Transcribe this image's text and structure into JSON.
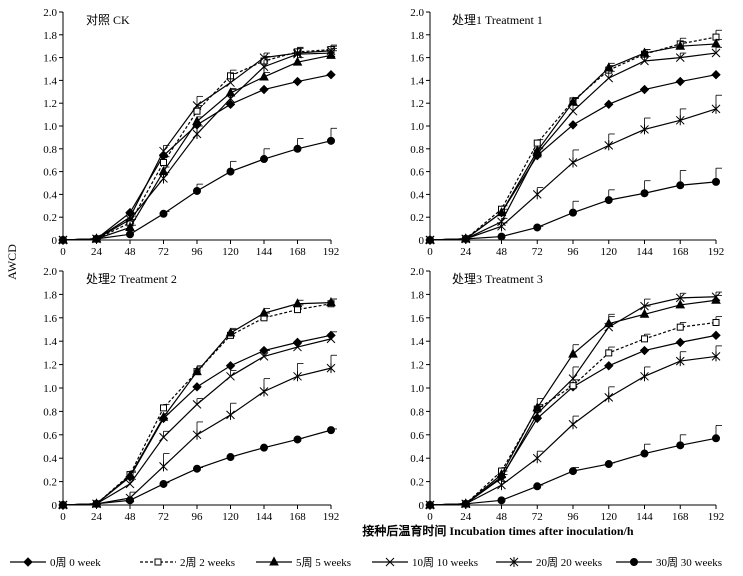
{
  "chart_data": {
    "type": "line",
    "ylabel": "AWCD",
    "xlabel": "接种后温育时间  Incubation times after inoculation/h",
    "x": [
      0,
      24,
      48,
      72,
      96,
      120,
      144,
      168,
      192
    ],
    "xticks": [
      "0",
      "24",
      "48",
      "72",
      "96",
      "120",
      "144",
      "168",
      "192"
    ],
    "yticks": [
      "0",
      "0.2",
      "0.4",
      "0.6",
      "0.8",
      "1.0",
      "1.2",
      "1.4",
      "1.6",
      "1.8",
      "2.0"
    ],
    "ylim": [
      0,
      2.0
    ],
    "legend": [
      {
        "key": "w0",
        "label": "0周  0 week"
      },
      {
        "key": "w2",
        "label": "2周  2 weeks"
      },
      {
        "key": "w5",
        "label": "5周  5 weeks"
      },
      {
        "key": "w10",
        "label": "10周 10 weeks"
      },
      {
        "key": "w20",
        "label": "20周 20 weeks"
      },
      {
        "key": "w30",
        "label": "30周 30 weeks"
      }
    ],
    "panels": [
      {
        "title": "对照 CK",
        "series": [
          {
            "key": "w0",
            "values": [
              0,
              0.01,
              0.24,
              0.74,
              1.01,
              1.19,
              1.32,
              1.39,
              1.45
            ],
            "err": [
              0,
              0,
              0,
              0,
              0,
              0,
              0,
              0,
              0
            ]
          },
          {
            "key": "w2",
            "values": [
              0,
              0.01,
              0.15,
              0.68,
              1.13,
              1.44,
              1.57,
              1.65,
              1.67
            ],
            "err": [
              0,
              0,
              0.03,
              0.05,
              0.05,
              0.05,
              0.04,
              0.04,
              0.03
            ]
          },
          {
            "key": "w5",
            "values": [
              0,
              0.01,
              0.11,
              0.6,
              1.04,
              1.29,
              1.43,
              1.56,
              1.62
            ],
            "err": [
              0,
              0,
              0.02,
              0.04,
              0.04,
              0.04,
              0.04,
              0.04,
              0.04
            ]
          },
          {
            "key": "w10",
            "values": [
              0,
              0.01,
              0.2,
              0.78,
              1.18,
              1.38,
              1.6,
              1.64,
              1.66
            ],
            "err": [
              0,
              0,
              0.03,
              0.05,
              0.08,
              0.08,
              0.04,
              0.05,
              0.05
            ]
          },
          {
            "key": "w20",
            "values": [
              0,
              0.01,
              0.18,
              0.54,
              0.93,
              1.24,
              1.52,
              1.63,
              1.64
            ],
            "err": [
              0,
              0,
              0.03,
              0.05,
              0.07,
              0.08,
              0.06,
              0.05,
              0.04
            ]
          },
          {
            "key": "w30",
            "values": [
              0,
              0.01,
              0.05,
              0.23,
              0.43,
              0.6,
              0.71,
              0.8,
              0.87
            ],
            "err": [
              0,
              0,
              0,
              0.02,
              0.06,
              0.09,
              0.09,
              0.09,
              0.11
            ]
          }
        ]
      },
      {
        "title": "处理1 Treatment 1",
        "series": [
          {
            "key": "w0",
            "values": [
              0,
              0.01,
              0.24,
              0.74,
              1.01,
              1.19,
              1.32,
              1.39,
              1.45
            ],
            "err": [
              0,
              0,
              0,
              0,
              0,
              0,
              0,
              0,
              0
            ]
          },
          {
            "key": "w2",
            "values": [
              0,
              0.01,
              0.27,
              0.85,
              1.22,
              1.49,
              1.63,
              1.72,
              1.78
            ],
            "err": [
              0,
              0,
              0.03,
              0.03,
              0.03,
              0.04,
              0.04,
              0.05,
              0.06
            ]
          },
          {
            "key": "w5",
            "values": [
              0,
              0.01,
              0.24,
              0.78,
              1.21,
              1.51,
              1.64,
              1.7,
              1.72
            ],
            "err": [
              0,
              0,
              0.03,
              0.03,
              0.03,
              0.04,
              0.03,
              0.04,
              0.04
            ]
          },
          {
            "key": "w10",
            "values": [
              0,
              0.01,
              0.16,
              0.76,
              1.13,
              1.42,
              1.57,
              1.6,
              1.64
            ],
            "err": [
              0,
              0,
              0.03,
              0.04,
              0.05,
              0.06,
              0.04,
              0.04,
              0.05
            ]
          },
          {
            "key": "w20",
            "values": [
              0,
              0.01,
              0.12,
              0.4,
              0.68,
              0.83,
              0.97,
              1.05,
              1.15
            ],
            "err": [
              0,
              0,
              0.03,
              0.06,
              0.11,
              0.1,
              0.1,
              0.1,
              0.12
            ]
          },
          {
            "key": "w30",
            "values": [
              0,
              0.01,
              0.03,
              0.11,
              0.24,
              0.35,
              0.41,
              0.48,
              0.51
            ],
            "err": [
              0,
              0,
              0,
              0.01,
              0.1,
              0.09,
              0.11,
              0.13,
              0.12
            ]
          }
        ]
      },
      {
        "title": "处理2 Treatment 2",
        "series": [
          {
            "key": "w0",
            "values": [
              0,
              0.01,
              0.24,
              0.74,
              1.01,
              1.19,
              1.32,
              1.39,
              1.45
            ],
            "err": [
              0,
              0,
              0,
              0,
              0,
              0,
              0,
              0,
              0
            ]
          },
          {
            "key": "w2",
            "values": [
              0,
              0.01,
              0.26,
              0.83,
              1.14,
              1.45,
              1.6,
              1.67,
              1.72
            ],
            "err": [
              0,
              0,
              0.03,
              0.03,
              0.05,
              0.05,
              0.04,
              0.04,
              0.04
            ]
          },
          {
            "key": "w5",
            "values": [
              0,
              0.01,
              0.25,
              0.75,
              1.14,
              1.47,
              1.64,
              1.72,
              1.73
            ],
            "err": [
              0,
              0,
              0.03,
              0.03,
              0.04,
              0.04,
              0.04,
              0.03,
              0.03
            ]
          },
          {
            "key": "w10",
            "values": [
              0,
              0.01,
              0.18,
              0.58,
              0.86,
              1.1,
              1.27,
              1.35,
              1.42
            ],
            "err": [
              0,
              0,
              0.04,
              0.05,
              0.05,
              0.05,
              0.05,
              0.05,
              0.06
            ]
          },
          {
            "key": "w20",
            "values": [
              0,
              0.01,
              0.06,
              0.33,
              0.6,
              0.77,
              0.97,
              1.1,
              1.17
            ],
            "err": [
              0,
              0,
              0.05,
              0.11,
              0.11,
              0.1,
              0.11,
              0.11,
              0.11
            ]
          },
          {
            "key": "w30",
            "values": [
              0,
              0.01,
              0.04,
              0.18,
              0.31,
              0.41,
              0.49,
              0.56,
              0.64
            ],
            "err": [
              0,
              0,
              0,
              0.01,
              0.01,
              0.01,
              0.01,
              0.01,
              0.01
            ]
          }
        ]
      },
      {
        "title": "处理3 Treatment 3",
        "series": [
          {
            "key": "w0",
            "values": [
              0,
              0.01,
              0.24,
              0.74,
              1.01,
              1.19,
              1.32,
              1.39,
              1.45
            ],
            "err": [
              0,
              0,
              0,
              0,
              0,
              0,
              0,
              0,
              0
            ]
          },
          {
            "key": "w2",
            "values": [
              0,
              0.01,
              0.29,
              0.82,
              1.02,
              1.3,
              1.42,
              1.52,
              1.56
            ],
            "err": [
              0,
              0,
              0.03,
              0.04,
              0.05,
              0.05,
              0.04,
              0.04,
              0.05
            ]
          },
          {
            "key": "w5",
            "values": [
              0,
              0.01,
              0.26,
              0.83,
              1.29,
              1.55,
              1.63,
              1.71,
              1.75
            ],
            "err": [
              0,
              0,
              0.03,
              0.08,
              0.08,
              0.08,
              0.07,
              0.06,
              0.04
            ]
          },
          {
            "key": "w10",
            "values": [
              0,
              0.01,
              0.23,
              0.78,
              1.08,
              1.52,
              1.7,
              1.77,
              1.78
            ],
            "err": [
              0,
              0,
              0.03,
              0.06,
              0.1,
              0.09,
              0.06,
              0.04,
              0.04
            ]
          },
          {
            "key": "w20",
            "values": [
              0,
              0.01,
              0.17,
              0.4,
              0.69,
              0.92,
              1.1,
              1.23,
              1.27
            ],
            "err": [
              0,
              0,
              0.03,
              0.06,
              0.07,
              0.09,
              0.08,
              0.08,
              0.09
            ]
          },
          {
            "key": "w30",
            "values": [
              0,
              0.01,
              0.04,
              0.16,
              0.29,
              0.35,
              0.44,
              0.51,
              0.57
            ],
            "err": [
              0,
              0,
              0,
              0.01,
              0.03,
              0.01,
              0.08,
              0.09,
              0.11
            ]
          }
        ]
      }
    ]
  }
}
